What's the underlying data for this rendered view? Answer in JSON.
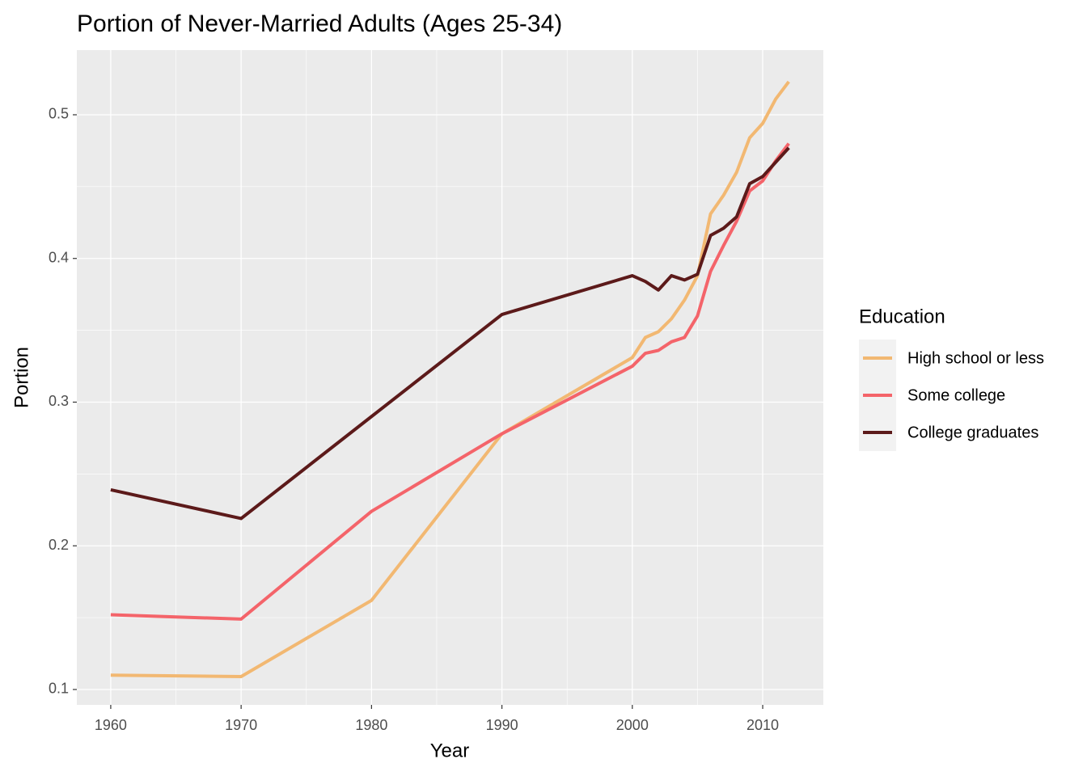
{
  "chart_data": {
    "type": "line",
    "title": "Portion of Never-Married Adults (Ages 25-34)",
    "x_label": "Year",
    "y_label": "Portion",
    "legend_title": "Education",
    "legend_position": "right",
    "grid": true,
    "x": [
      1960,
      1970,
      1980,
      1990,
      2000,
      2001,
      2002,
      2003,
      2004,
      2005,
      2006,
      2007,
      2008,
      2009,
      2010,
      2011,
      2012
    ],
    "series": [
      {
        "name": "High school or less",
        "color": "#f2b872",
        "values": [
          0.11,
          0.109,
          0.162,
          0.278,
          0.331,
          0.345,
          0.349,
          0.358,
          0.371,
          0.388,
          0.431,
          0.444,
          0.46,
          0.484,
          0.494,
          0.511,
          0.523
        ]
      },
      {
        "name": "Some college",
        "color": "#f4646a",
        "values": [
          0.152,
          0.149,
          0.224,
          0.278,
          0.325,
          0.334,
          0.336,
          0.342,
          0.345,
          0.36,
          0.391,
          0.409,
          0.426,
          0.447,
          0.454,
          0.468,
          0.48
        ]
      },
      {
        "name": "College graduates",
        "color": "#5c1a1a",
        "values": [
          0.239,
          0.219,
          0.29,
          0.361,
          0.388,
          0.384,
          0.378,
          0.388,
          0.385,
          0.389,
          0.416,
          0.421,
          0.429,
          0.452,
          0.457,
          0.467,
          0.477
        ]
      }
    ],
    "xlim": [
      1957.4,
      2014.65
    ],
    "xticks": [
      1960,
      1970,
      1980,
      1990,
      2000,
      2010
    ],
    "ylim": [
      0.0893,
      0.545
    ],
    "yticks": [
      0.1,
      0.2,
      0.3,
      0.4,
      0.5
    ]
  }
}
